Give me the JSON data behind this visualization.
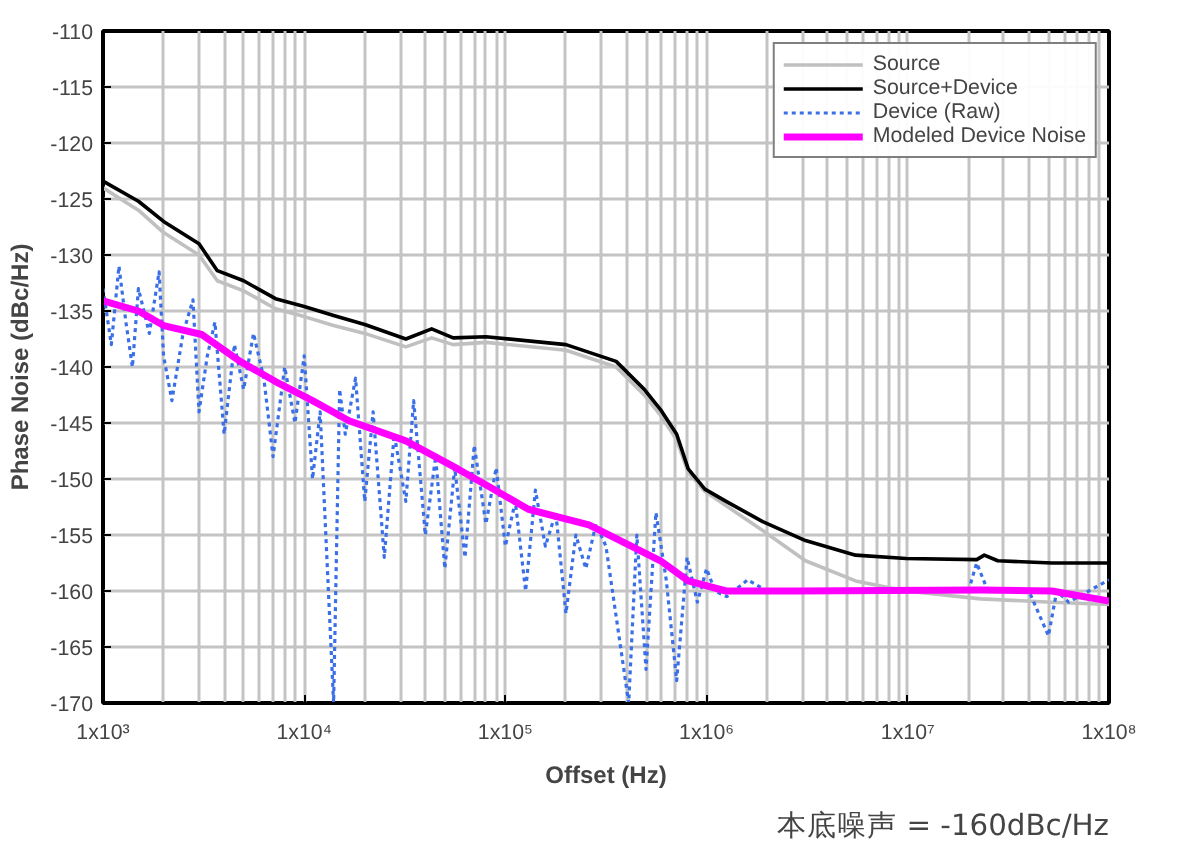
{
  "chart_data": {
    "type": "line",
    "xlabel": "Offset (Hz)",
    "ylabel": "Phase Noise (dBc/Hz)",
    "log": "x",
    "grid": true,
    "legend": "top right",
    "marker": "none",
    "xlim": [
      1000,
      100000000
    ],
    "ylim": [
      -170,
      -110
    ],
    "xticks": [
      {
        "value": 1000,
        "label": "1x10³"
      },
      {
        "value": 10000,
        "label": "1x10⁴"
      },
      {
        "value": 100000,
        "label": "1x10⁵"
      },
      {
        "value": 1000000,
        "label": "1x10⁶"
      },
      {
        "value": 10000000,
        "label": "1x10⁷"
      },
      {
        "value": 100000000,
        "label": "1x10⁸"
      }
    ],
    "yticks": [
      -170,
      -165,
      -160,
      -155,
      -150,
      -145,
      -140,
      -135,
      -130,
      -125,
      -120,
      -115,
      -110
    ],
    "annotations": [
      "本底噪声 = -160dBc/Hz"
    ],
    "series": [
      {
        "name": "Source",
        "color": "#c0c0c0",
        "line_style": "solid",
        "x": [
          1000,
          1500,
          2000,
          3000,
          3700,
          5000,
          7200,
          10000,
          14000,
          20000,
          32000,
          43000,
          55000,
          80000,
          200000,
          355000,
          490000,
          590000,
          710000,
          810000,
          980000,
          1900000,
          3100000,
          5500000,
          9800000,
          23000000,
          52000000,
          100000000
        ],
        "values": [
          -124,
          -126,
          -128,
          -130,
          -132.3,
          -133.2,
          -134.8,
          -135.5,
          -136.3,
          -137,
          -138.2,
          -137.4,
          -138,
          -137.8,
          -138.5,
          -140,
          -142.5,
          -144.3,
          -146.5,
          -149.4,
          -151.1,
          -154.6,
          -157.3,
          -159.1,
          -160,
          -160.7,
          -161,
          -161.2
        ]
      },
      {
        "name": "Source+Device",
        "color": "#000000",
        "line_style": "solid",
        "x": [
          1000,
          1500,
          2000,
          3000,
          3700,
          5000,
          7200,
          10000,
          14000,
          20000,
          32000,
          43000,
          55000,
          80000,
          200000,
          355000,
          490000,
          590000,
          710000,
          810000,
          980000,
          1250000,
          1900000,
          3100000,
          5500000,
          9800000,
          22000000,
          24000000,
          28000000,
          52000000,
          100000000
        ],
        "values": [
          -123.4,
          -125.2,
          -127,
          -129,
          -131.4,
          -132.3,
          -133.9,
          -134.6,
          -135.4,
          -136.2,
          -137.5,
          -136.6,
          -137.4,
          -137.3,
          -138,
          -139.5,
          -142,
          -143.8,
          -146,
          -149.1,
          -150.9,
          -152,
          -153.8,
          -155.5,
          -156.8,
          -157.1,
          -157.2,
          -156.8,
          -157.3,
          -157.5,
          -157.5
        ]
      },
      {
        "name": "Device (Raw)",
        "color": "#3a6fe8",
        "line_style": "dotted",
        "x": [
          1000,
          1100,
          1200,
          1300,
          1400,
          1500,
          1700,
          1900,
          2000,
          2200,
          2500,
          2800,
          3000,
          3300,
          3600,
          4000,
          4500,
          5000,
          5600,
          6300,
          7000,
          8000,
          9000,
          10000,
          11000,
          12000,
          14000,
          15000,
          16000,
          18000,
          20000,
          22000,
          25000,
          28000,
          32000,
          35000,
          40000,
          45000,
          50000,
          56000,
          63000,
          70000,
          80000,
          90000,
          100000,
          112000,
          126000,
          141000,
          158000,
          178000,
          200000,
          224000,
          251000,
          282000,
          316000,
          360000,
          410000,
          450000,
          500000,
          560000,
          630000,
          710000,
          800000,
          900000,
          1000000,
          1100000,
          1260000,
          1600000,
          2000000,
          3000000,
          10000000,
          20000000,
          22000000,
          25000000,
          40000000,
          50000000,
          55000000,
          63000000,
          100000000
        ],
        "values": [
          -133,
          -138,
          -131,
          -136,
          -140,
          -133,
          -137,
          -131.5,
          -139,
          -143,
          -137,
          -134,
          -144,
          -139,
          -136,
          -146,
          -138,
          -142,
          -137,
          -141,
          -148,
          -140,
          -145,
          -139,
          -150,
          -144,
          -170,
          -142,
          -146,
          -141,
          -152,
          -144,
          -157,
          -146,
          -152,
          -143,
          -155,
          -148,
          -158,
          -149,
          -157,
          -147,
          -154,
          -149,
          -156,
          -152,
          -160,
          -151,
          -156,
          -153,
          -162,
          -155,
          -158,
          -154,
          -156,
          -163,
          -170,
          -155,
          -167,
          -153,
          -159,
          -168,
          -157,
          -161,
          -158,
          -160,
          -160.5,
          -159,
          -160,
          null,
          null,
          -160,
          -157.5,
          -160,
          -160,
          -164,
          -160,
          -161,
          -159
        ]
      },
      {
        "name": "Modeled Device Noise",
        "color": "#ff00ff",
        "line_style": "solid",
        "x": [
          1000,
          1500,
          2000,
          3100,
          4800,
          7200,
          11000,
          16700,
          32000,
          58000,
          87000,
          130000,
          260000,
          590000,
          810000,
          1250000,
          2800000,
          23000000,
          52000000,
          100000000
        ],
        "values": [
          -134.1,
          -135,
          -136.3,
          -137.1,
          -139.5,
          -141.3,
          -143,
          -144.8,
          -146.6,
          -149.1,
          -150.9,
          -152.7,
          -154.1,
          -157.3,
          -159.1,
          -160,
          -160,
          -159.9,
          -160,
          -160.9
        ]
      }
    ]
  }
}
